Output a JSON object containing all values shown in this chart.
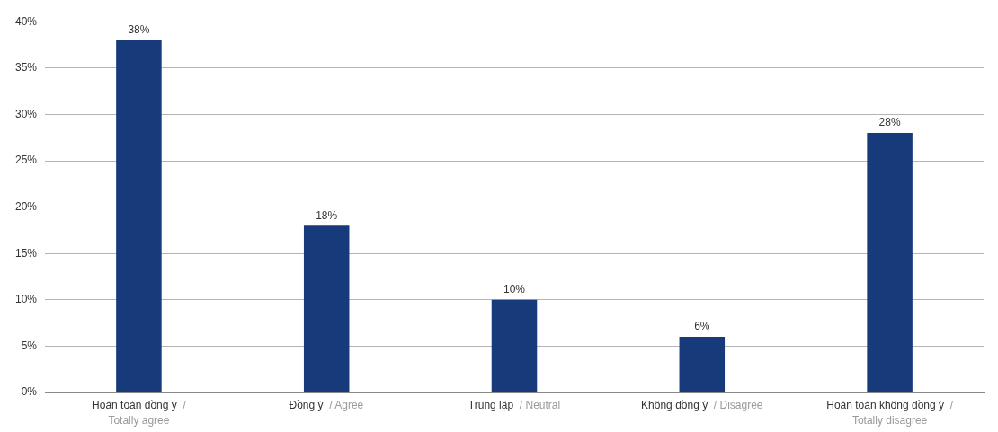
{
  "chart_data": {
    "type": "bar",
    "categories": [
      "Hoàn toàn đồng ý / Totally agree",
      "Đồng ý / Agree",
      "Trung lập / Neutral",
      "Không đồng ý / Disagree",
      "Hoàn toàn không đồng ý / Totally disagree"
    ],
    "values": [
      38,
      18,
      10,
      6,
      28
    ],
    "value_labels": [
      "38%",
      "18%",
      "10%",
      "6%",
      "28%"
    ],
    "color": "#173b7a",
    "ylim": [
      0,
      40
    ],
    "yticks": [
      {
        "value": 0,
        "label": "0%"
      },
      {
        "value": 5,
        "label": "5%"
      },
      {
        "value": 10,
        "label": "10%"
      },
      {
        "value": 15,
        "label": "15%"
      },
      {
        "value": 20,
        "label": "20%"
      },
      {
        "value": 25,
        "label": "25%"
      },
      {
        "value": 30,
        "label": "30%"
      },
      {
        "value": 35,
        "label": "35%"
      },
      {
        "value": 40,
        "label": "40%"
      }
    ],
    "grid": "y"
  }
}
